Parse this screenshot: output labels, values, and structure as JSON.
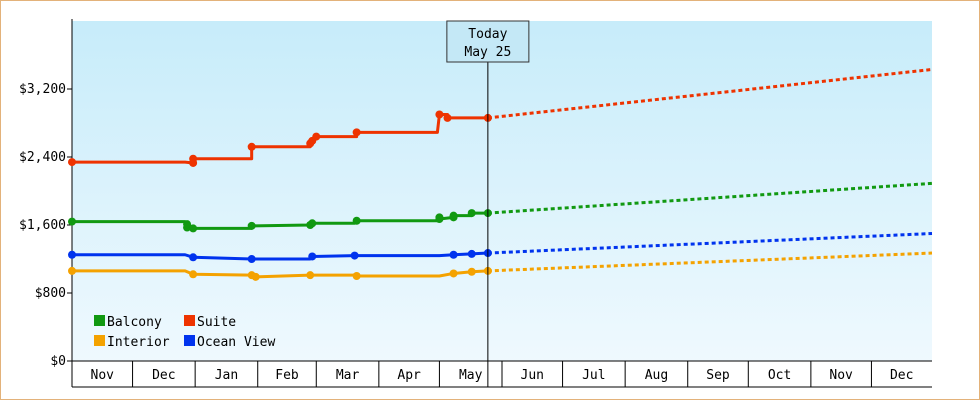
{
  "chart_data": {
    "type": "line",
    "title": "",
    "xlabel": "",
    "ylabel": "",
    "y_ticks": [
      "$0",
      "$800",
      "$1,600",
      "$2,400",
      "$3,200"
    ],
    "ylim": [
      0,
      4000
    ],
    "months": [
      "Nov",
      "Dec",
      "Jan",
      "Feb",
      "Mar",
      "Apr",
      "May",
      "Jun",
      "Jul",
      "Aug",
      "Sep",
      "Oct",
      "Nov",
      "Dec"
    ],
    "xlim": [
      "2023-11-01",
      "2024-12-31"
    ],
    "today": {
      "line1": "Today",
      "line2": "May 25",
      "date": "2024-05-25"
    },
    "grid": false,
    "legend_position": "bottom-left",
    "series": [
      {
        "name": "Balcony",
        "color": "#119911",
        "history": [
          [
            "2023-11-01",
            1640
          ],
          [
            "2023-12-27",
            1640
          ],
          [
            "2023-12-28",
            1570
          ],
          [
            "2023-12-28",
            1610
          ],
          [
            "2023-12-31",
            1560
          ],
          [
            "2024-01-29",
            1560
          ],
          [
            "2024-01-29",
            1590
          ],
          [
            "2024-02-27",
            1600
          ],
          [
            "2024-02-28",
            1620
          ],
          [
            "2024-03-20",
            1620
          ],
          [
            "2024-03-21",
            1650
          ],
          [
            "2024-04-30",
            1650
          ],
          [
            "2024-05-01",
            1690
          ],
          [
            "2024-05-01",
            1670
          ],
          [
            "2024-05-08",
            1690
          ],
          [
            "2024-05-08",
            1710
          ],
          [
            "2024-05-17",
            1710
          ],
          [
            "2024-05-17",
            1740
          ],
          [
            "2024-05-25",
            1740
          ]
        ],
        "forecast": [
          [
            "2024-05-25",
            1740
          ],
          [
            "2024-12-31",
            2090
          ]
        ]
      },
      {
        "name": "Suite",
        "color": "#ee3300",
        "history": [
          [
            "2023-11-01",
            2340
          ],
          [
            "2023-12-27",
            2340
          ],
          [
            "2023-12-31",
            2330
          ],
          [
            "2023-12-31",
            2380
          ],
          [
            "2024-01-29",
            2380
          ],
          [
            "2024-01-29",
            2520
          ],
          [
            "2024-02-27",
            2520
          ],
          [
            "2024-02-27",
            2560
          ],
          [
            "2024-02-28",
            2590
          ],
          [
            "2024-03-01",
            2640
          ],
          [
            "2024-03-21",
            2640
          ],
          [
            "2024-03-21",
            2690
          ],
          [
            "2024-04-30",
            2690
          ],
          [
            "2024-05-01",
            2900
          ],
          [
            "2024-05-05",
            2900
          ],
          [
            "2024-05-05",
            2860
          ],
          [
            "2024-05-25",
            2860
          ]
        ],
        "forecast": [
          [
            "2024-05-25",
            2860
          ],
          [
            "2024-12-31",
            3430
          ]
        ]
      },
      {
        "name": "Interior",
        "color": "#f4a200",
        "history": [
          [
            "2023-11-01",
            1060
          ],
          [
            "2023-12-27",
            1060
          ],
          [
            "2023-12-31",
            1020
          ],
          [
            "2024-01-29",
            1010
          ],
          [
            "2024-01-31",
            990
          ],
          [
            "2024-02-27",
            1010
          ],
          [
            "2024-03-20",
            1010
          ],
          [
            "2024-03-21",
            1000
          ],
          [
            "2024-05-01",
            1000
          ],
          [
            "2024-05-08",
            1030
          ],
          [
            "2024-05-17",
            1050
          ],
          [
            "2024-05-25",
            1060
          ]
        ],
        "forecast": [
          [
            "2024-05-25",
            1060
          ],
          [
            "2024-12-31",
            1270
          ]
        ]
      },
      {
        "name": "Ocean View",
        "color": "#0033ee",
        "history": [
          [
            "2023-11-01",
            1250
          ],
          [
            "2023-12-27",
            1250
          ],
          [
            "2023-12-31",
            1220
          ],
          [
            "2024-01-29",
            1200
          ],
          [
            "2024-02-27",
            1200
          ],
          [
            "2024-02-28",
            1230
          ],
          [
            "2024-03-20",
            1240
          ],
          [
            "2024-05-01",
            1240
          ],
          [
            "2024-05-08",
            1250
          ],
          [
            "2024-05-17",
            1260
          ],
          [
            "2024-05-25",
            1270
          ]
        ],
        "forecast": [
          [
            "2024-05-25",
            1270
          ],
          [
            "2024-12-31",
            1500
          ]
        ]
      }
    ]
  }
}
